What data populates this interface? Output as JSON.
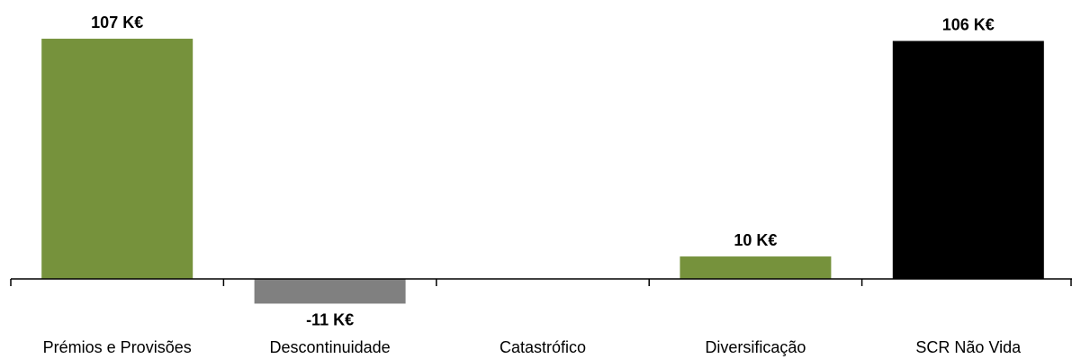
{
  "chart_data": {
    "type": "bar",
    "categories": [
      "Prémios e Provisões",
      "Descontinuidade",
      "Catastrófico",
      "Diversificação",
      "SCR Não Vida"
    ],
    "values": [
      107,
      -11,
      0,
      10,
      106
    ],
    "value_labels": [
      "107 K€",
      "-11 K€",
      "",
      "10 K€",
      "106 K€"
    ],
    "colors": [
      "#76923c",
      "#808080",
      "#76923c",
      "#76923c",
      "#000000"
    ],
    "title": "",
    "xlabel": "",
    "ylabel": "",
    "ylim": [
      -12,
      115
    ],
    "grid": false,
    "legend": "none"
  }
}
